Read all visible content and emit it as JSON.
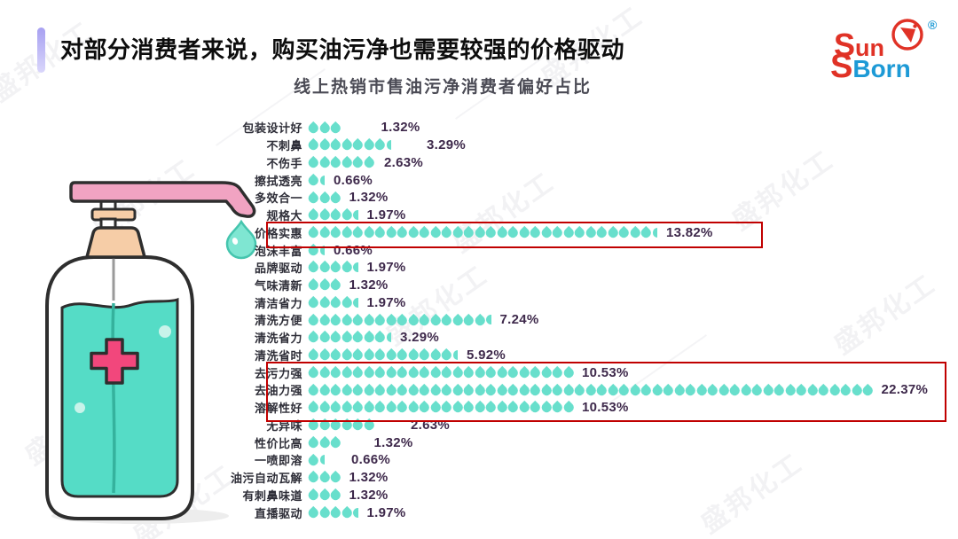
{
  "header": {
    "title": "对部分消费者来说，购买油污净也需要较强的价格驱动"
  },
  "logo": {
    "sun_s": "S",
    "sun_rest": "un",
    "s2": "S",
    "born": "Born",
    "registered": "®",
    "red": "#e03226",
    "blue": "#1d9ad6"
  },
  "watermark": {
    "text": "盛邦化工"
  },
  "chart_data": {
    "type": "bar",
    "orientation": "horizontal",
    "title": "线上热销市售油污净消费者偏好占比",
    "unit": "%",
    "icon": "droplet",
    "categories": [
      "包装设计好",
      "不刺鼻",
      "不伤手",
      "擦拭透亮",
      "多效合一",
      "规格大",
      "价格实惠",
      "泡沫丰富",
      "品牌驱动",
      "气味清新",
      "清洁省力",
      "清洗方便",
      "清洗省力",
      "清洗省时",
      "去污力强",
      "去油力强",
      "溶解性好",
      "无异味",
      "性价比高",
      "一喷即溶",
      "油污自动瓦解",
      "有刺鼻味道",
      "直播驱动"
    ],
    "values": [
      1.32,
      3.29,
      2.63,
      0.66,
      1.32,
      1.97,
      13.82,
      0.66,
      1.97,
      1.32,
      1.97,
      7.24,
      3.29,
      5.92,
      10.53,
      22.37,
      10.53,
      2.63,
      1.32,
      0.66,
      1.32,
      1.32,
      1.97
    ],
    "value_labels": [
      "1.32%",
      "3.29%",
      "2.63%",
      "0.66%",
      "1.32%",
      "1.97%",
      "13.82%",
      "0.66%",
      "1.97%",
      "1.32%",
      "1.97%",
      "7.24%",
      "3.29%",
      "5.92%",
      "10.53%",
      "22.37%",
      "10.53%",
      "2.63%",
      "1.32%",
      "0.66%",
      "1.32%",
      "1.32%",
      "1.97%"
    ],
    "drop_counts": [
      3,
      7.5,
      6,
      1.5,
      3,
      4.5,
      31.5,
      1.5,
      4.5,
      3,
      4.5,
      16.5,
      7.5,
      13.5,
      24,
      51,
      24,
      6,
      3,
      1.5,
      3,
      3,
      4.5
    ],
    "highlighted_categories": [
      "价格实惠",
      "去污力强",
      "去油力强",
      "溶解性好"
    ],
    "xlim": [
      0,
      22.37
    ],
    "colors": {
      "droplet": "#68dfcc",
      "value_text": "#3e294b",
      "category_text": "#2e2e38",
      "highlight_border": "#c00000"
    }
  }
}
